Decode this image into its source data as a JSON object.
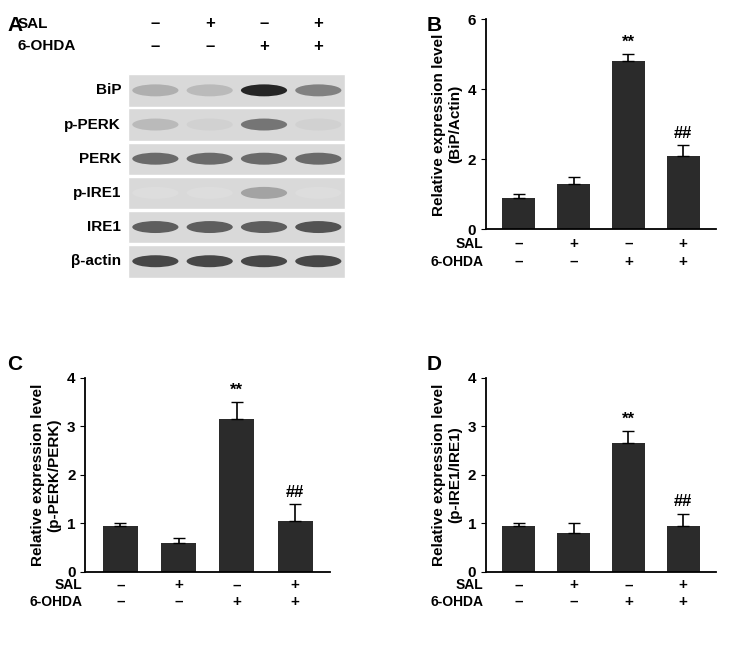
{
  "blot": {
    "panel": "A",
    "treatments": [
      {
        "name": "SAL",
        "signs": [
          "–",
          "+",
          "–",
          "+"
        ]
      },
      {
        "name": "6-OHDA",
        "signs": [
          "–",
          "–",
          "+",
          "+"
        ]
      }
    ],
    "rows": [
      {
        "label": "BiP",
        "intensity": [
          0.35,
          0.3,
          0.95,
          0.55
        ]
      },
      {
        "label": "p-PERK",
        "intensity": [
          0.3,
          0.2,
          0.6,
          0.2
        ]
      },
      {
        "label": "PERK",
        "intensity": [
          0.65,
          0.65,
          0.65,
          0.65
        ]
      },
      {
        "label": "p-IRE1",
        "intensity": [
          0.15,
          0.15,
          0.4,
          0.15
        ]
      },
      {
        "label": "IRE1",
        "intensity": [
          0.7,
          0.7,
          0.7,
          0.75
        ]
      },
      {
        "label": "β-actin",
        "intensity": [
          0.8,
          0.8,
          0.8,
          0.8
        ]
      }
    ]
  },
  "chart_data": [
    {
      "type": "bar",
      "panel": "B",
      "y_label": "Relative expression level\n(BiP/Actin)",
      "categories": [
        null,
        null,
        null,
        null
      ],
      "values": [
        0.9,
        1.3,
        4.8,
        2.1
      ],
      "errors": [
        0.1,
        0.2,
        0.2,
        0.3
      ],
      "significance": [
        null,
        null,
        "**",
        "##"
      ],
      "treatments": [
        {
          "name": "SAL",
          "signs": [
            "–",
            "+",
            "–",
            "+"
          ]
        },
        {
          "name": "6-OHDA",
          "signs": [
            "–",
            "–",
            "+",
            "+"
          ]
        }
      ],
      "color": "#2b2b2b",
      "ylim": [
        0,
        6
      ],
      "yticks": [
        0,
        2,
        4,
        6
      ],
      "tick_labels": "y"
    },
    {
      "type": "bar",
      "panel": "C",
      "y_label": "Relative expression level\n(p-PERK/PERK)",
      "categories": [
        null,
        null,
        null,
        null
      ],
      "values": [
        0.95,
        0.6,
        3.15,
        1.05
      ],
      "errors": [
        0.05,
        0.1,
        0.35,
        0.35
      ],
      "significance": [
        null,
        null,
        "**",
        "##"
      ],
      "treatments": [
        {
          "name": "SAL",
          "signs": [
            "–",
            "+",
            "–",
            "+"
          ]
        },
        {
          "name": "6-OHDA",
          "signs": [
            "–",
            "–",
            "+",
            "+"
          ]
        }
      ],
      "color": "#2b2b2b",
      "ylim": [
        0,
        4
      ],
      "yticks": [
        0,
        1,
        2,
        3,
        4
      ],
      "tick_labels": "y"
    },
    {
      "type": "bar",
      "panel": "D",
      "y_label": "Relative expression level\n(p-IRE1/IRE1)",
      "categories": [
        null,
        null,
        null,
        null
      ],
      "values": [
        0.95,
        0.8,
        2.65,
        0.95
      ],
      "errors": [
        0.05,
        0.2,
        0.25,
        0.25
      ],
      "significance": [
        null,
        null,
        "**",
        "##"
      ],
      "treatments": [
        {
          "name": "SAL",
          "signs": [
            "–",
            "+",
            "–",
            "+"
          ]
        },
        {
          "name": "6-OHDA",
          "signs": [
            "–",
            "–",
            "+",
            "+"
          ]
        }
      ],
      "color": "#2b2b2b",
      "ylim": [
        0,
        4
      ],
      "yticks": [
        0,
        1,
        2,
        3,
        4
      ],
      "tick_labels": "y"
    }
  ]
}
